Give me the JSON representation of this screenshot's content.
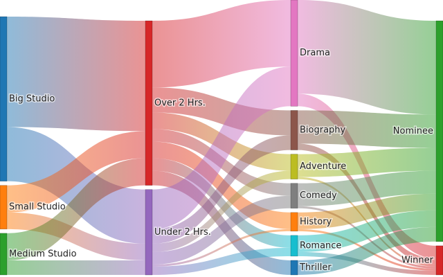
{
  "chart_data": {
    "type": "sankey",
    "nodes": [
      {
        "label": "Big Studio",
        "color": "#1f77b4"
      },
      {
        "label": "Small Studio",
        "color": "#ff7f0e"
      },
      {
        "label": "Medium Studio",
        "color": "#2ca02c"
      },
      {
        "label": "Over 2 Hrs.",
        "color": "#d62728"
      },
      {
        "label": "Under 2 Hrs.",
        "color": "#9467bd"
      },
      {
        "label": "Drama",
        "color": "#e377c2"
      },
      {
        "label": "Biography",
        "color": "#8c564b"
      },
      {
        "label": "Adventure",
        "color": "#bcbd22"
      },
      {
        "label": "Comedy",
        "color": "#7f7f7f"
      },
      {
        "label": "History",
        "color": "#ff7f0e"
      },
      {
        "label": "Romance",
        "color": "#17becf"
      },
      {
        "label": "Thriller",
        "color": "#1f77b4"
      },
      {
        "label": "Nominee",
        "color": "#2ca02c"
      },
      {
        "label": "Winner",
        "color": "#d62728"
      }
    ],
    "links": [
      {
        "source": 0,
        "target": 3,
        "value": 53
      },
      {
        "source": 0,
        "target": 4,
        "value": 26
      },
      {
        "source": 1,
        "target": 3,
        "value": 13
      },
      {
        "source": 1,
        "target": 4,
        "value": 8
      },
      {
        "source": 2,
        "target": 3,
        "value": 13
      },
      {
        "source": 2,
        "target": 4,
        "value": 7
      },
      {
        "source": 3,
        "target": 5,
        "value": 32
      },
      {
        "source": 3,
        "target": 6,
        "value": 12
      },
      {
        "source": 3,
        "target": 7,
        "value": 8
      },
      {
        "source": 3,
        "target": 8,
        "value": 6
      },
      {
        "source": 3,
        "target": 9,
        "value": 8
      },
      {
        "source": 3,
        "target": 10,
        "value": 6
      },
      {
        "source": 3,
        "target": 11,
        "value": 7
      },
      {
        "source": 4,
        "target": 5,
        "value": 19
      },
      {
        "source": 4,
        "target": 6,
        "value": 7
      },
      {
        "source": 4,
        "target": 7,
        "value": 4
      },
      {
        "source": 4,
        "target": 8,
        "value": 6
      },
      {
        "source": 4,
        "target": 9,
        "value": 1
      },
      {
        "source": 4,
        "target": 10,
        "value": 4
      },
      {
        "source": 5,
        "target": 12,
        "value": 45
      },
      {
        "source": 5,
        "target": 13,
        "value": 6
      },
      {
        "source": 6,
        "target": 12,
        "value": 16
      },
      {
        "source": 6,
        "target": 13,
        "value": 3
      },
      {
        "source": 7,
        "target": 12,
        "value": 11
      },
      {
        "source": 7,
        "target": 13,
        "value": 1
      },
      {
        "source": 8,
        "target": 12,
        "value": 11
      },
      {
        "source": 8,
        "target": 13,
        "value": 1
      },
      {
        "source": 9,
        "target": 12,
        "value": 8
      },
      {
        "source": 9,
        "target": 13,
        "value": 1
      },
      {
        "source": 10,
        "target": 12,
        "value": 8
      },
      {
        "source": 10,
        "target": 13,
        "value": 2
      },
      {
        "source": 11,
        "target": 12,
        "value": 7
      }
    ]
  }
}
